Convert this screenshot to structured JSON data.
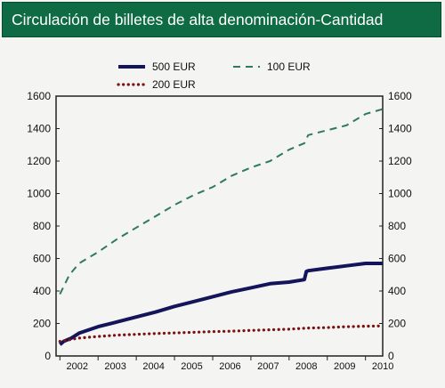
{
  "header": {
    "title": "Circulación de billetes de alta denominación-Cantidad"
  },
  "chart_data": {
    "type": "line",
    "xlim": [
      2001.9,
      2010.45
    ],
    "ylim": [
      0,
      1600
    ],
    "y_ticks": [
      0,
      200,
      400,
      600,
      800,
      1000,
      1200,
      1400,
      1600
    ],
    "x_tick_labels": [
      "2002",
      "2003",
      "2004",
      "2005",
      "2006",
      "2007",
      "2008",
      "2009",
      "2010"
    ],
    "x_tick_positions": [
      2002.5,
      2003.5,
      2004.5,
      2005.5,
      2006.5,
      2007.5,
      2008.5,
      2009.5,
      2010.5
    ],
    "grid": false,
    "legend_position": "top",
    "series": [
      {
        "name": "500 EUR",
        "style": "solid",
        "color": "#14145a",
        "x": [
          2002.0,
          2002.1,
          2002.3,
          2002.5,
          2003.0,
          2003.5,
          2004.0,
          2004.5,
          2005.0,
          2005.5,
          2006.0,
          2006.5,
          2007.0,
          2007.5,
          2008.0,
          2008.4,
          2008.45,
          2008.5,
          2009.0,
          2009.5,
          2010.0,
          2010.45
        ],
        "y": [
          70,
          90,
          110,
          140,
          180,
          210,
          240,
          270,
          305,
          335,
          365,
          395,
          420,
          445,
          455,
          470,
          520,
          525,
          540,
          555,
          570,
          570
        ]
      },
      {
        "name": "100 EUR",
        "style": "dashed",
        "color": "#2f7a5c",
        "x": [
          2002.0,
          2002.25,
          2002.5,
          2003.0,
          2003.5,
          2004.0,
          2004.5,
          2005.0,
          2005.5,
          2006.0,
          2006.5,
          2007.0,
          2007.5,
          2008.0,
          2008.4,
          2008.5,
          2009.0,
          2009.5,
          2010.0,
          2010.45
        ],
        "y": [
          380,
          500,
          570,
          640,
          720,
          790,
          860,
          930,
          990,
          1040,
          1110,
          1160,
          1200,
          1270,
          1310,
          1360,
          1390,
          1420,
          1490,
          1520
        ]
      },
      {
        "name": "200 EUR",
        "style": "dotted",
        "color": "#7a1212",
        "x": [
          2002.0,
          2002.5,
          2003.0,
          2003.5,
          2004.0,
          2004.5,
          2005.0,
          2005.5,
          2006.0,
          2006.5,
          2007.0,
          2007.5,
          2008.0,
          2008.5,
          2009.0,
          2009.5,
          2010.0,
          2010.45
        ],
        "y": [
          90,
          110,
          120,
          128,
          133,
          138,
          142,
          146,
          150,
          153,
          157,
          161,
          165,
          172,
          175,
          180,
          183,
          185
        ]
      }
    ]
  }
}
